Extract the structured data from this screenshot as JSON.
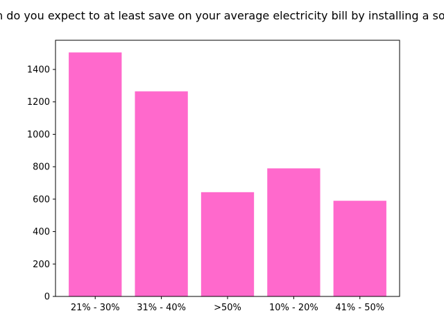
{
  "chart_data": {
    "type": "bar",
    "title": "How much do you expect to at least save on your average electricity bill by installing a solar panel?",
    "xlabel": "",
    "ylabel": "",
    "categories": [
      "21% - 30%",
      "31% - 40%",
      ">50%",
      "10% - 20%",
      "41% - 50%"
    ],
    "values": [
      1505,
      1265,
      643,
      790,
      590
    ],
    "ylim": [
      0,
      1580
    ],
    "yticks": [
      0,
      200,
      400,
      600,
      800,
      1000,
      1200,
      1400
    ],
    "bar_color": "#ff69cc",
    "grid": false,
    "legend": "none"
  }
}
